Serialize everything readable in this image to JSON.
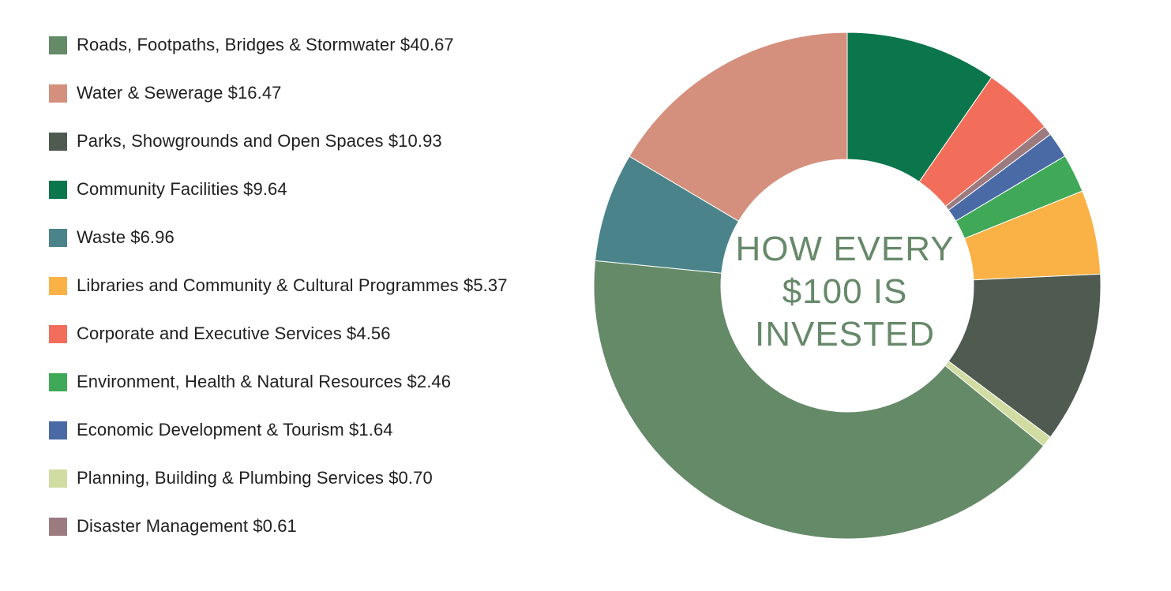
{
  "chart_data": {
    "type": "pie",
    "donut": true,
    "center_text": [
      "HOW EVERY",
      "$100 IS",
      "INVESTED"
    ],
    "legend_placement": "left",
    "slices": [
      {
        "label": "Roads, Footpaths, Bridges & Stormwater $40.67",
        "value": 40.67,
        "color": "#658a68"
      },
      {
        "label": "Water & Sewerage $16.47",
        "value": 16.47,
        "color": "#d4907d"
      },
      {
        "label": "Parks, Showgrounds and Open Spaces $10.93",
        "value": 10.93,
        "color": "#4f5a51"
      },
      {
        "label": "Community Facilities $9.64",
        "value": 9.64,
        "color": "#0b754b"
      },
      {
        "label": "Waste $6.96",
        "value": 6.96,
        "color": "#4a848a"
      },
      {
        "label": "Libraries and Community & Cultural Programmes $5.37",
        "value": 5.37,
        "color": "#fab146"
      },
      {
        "label": "Corporate and Executive Services $4.56",
        "value": 4.56,
        "color": "#f26e5b"
      },
      {
        "label": "Environment, Health & Natural Resources $2.46",
        "value": 2.46,
        "color": "#40a958"
      },
      {
        "label": "Economic Development & Tourism $1.64",
        "value": 1.64,
        "color": "#4a6aa6"
      },
      {
        "label": "Planning, Building & Plumbing Services $0.70",
        "value": 0.7,
        "color": "#d1dca2"
      },
      {
        "label": "Disaster Management $0.61",
        "value": 0.61,
        "color": "#9b7a80"
      }
    ],
    "clockwise_order_from_top": [
      "Community Facilities $9.64",
      "Corporate and Executive Services $4.56",
      "Disaster Management $0.61",
      "Economic Development & Tourism $1.64",
      "Environment, Health & Natural Resources $2.46",
      "Libraries and Community & Cultural Programmes $5.37",
      "Parks, Showgrounds and Open Spaces $10.93",
      "Planning, Building & Plumbing Services $0.70",
      "Roads, Footpaths, Bridges & Stormwater $40.67",
      "Waste $6.96",
      "Water & Sewerage $16.47"
    ]
  }
}
